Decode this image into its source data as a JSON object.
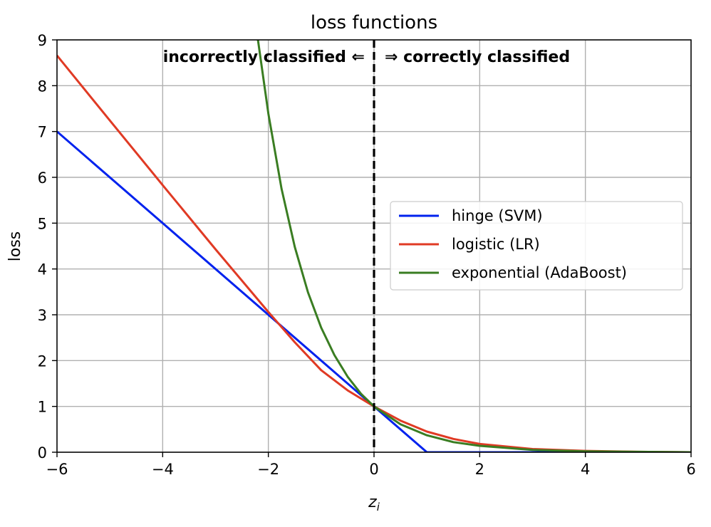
{
  "chart_data": {
    "type": "line",
    "title": "loss functions",
    "xlabel": "z",
    "xlabel_subscript": "i",
    "ylabel": "loss",
    "xlim": [
      -6,
      6
    ],
    "ylim": [
      0,
      9
    ],
    "x_ticks": [
      -6,
      -4,
      -2,
      0,
      2,
      4,
      6
    ],
    "x_tick_labels": [
      "−6",
      "−4",
      "−2",
      "0",
      "2",
      "4",
      "6"
    ],
    "y_ticks": [
      0,
      1,
      2,
      3,
      4,
      5,
      6,
      7,
      8,
      9
    ],
    "y_tick_labels": [
      "0",
      "1",
      "2",
      "3",
      "4",
      "5",
      "6",
      "7",
      "8",
      "9"
    ],
    "grid": true,
    "legend_position": "center-right",
    "vertical_line": {
      "x": 0,
      "style": "dashed",
      "color": "#000000"
    },
    "annotations": {
      "left": "incorrectly classified ⇐",
      "right": "⇒ correctly classified"
    },
    "series": [
      {
        "name": "hinge (SVM)",
        "color": "#0022ee",
        "x": [
          -6,
          -4,
          -2,
          0,
          1,
          2,
          4,
          6
        ],
        "y": [
          7,
          5,
          3,
          1,
          0,
          0,
          0,
          0
        ]
      },
      {
        "name": "logistic (LR)",
        "color": "#e03a24",
        "x": [
          -6,
          -5,
          -4,
          -3,
          -2,
          -1.5,
          -1,
          -0.5,
          0,
          0.5,
          1,
          1.5,
          2,
          3,
          4,
          5,
          6
        ],
        "y": [
          8.66,
          7.24,
          5.83,
          4.43,
          3.06,
          2.4,
          1.79,
          1.35,
          1.0,
          0.69,
          0.45,
          0.29,
          0.18,
          0.07,
          0.03,
          0.01,
          0.0
        ]
      },
      {
        "name": "exponential (AdaBoost)",
        "color": "#3a7d22",
        "x": [
          -2.2,
          -2,
          -1.75,
          -1.5,
          -1.25,
          -1,
          -0.75,
          -0.5,
          -0.25,
          0,
          0.5,
          1,
          1.5,
          2,
          3,
          4,
          5,
          6
        ],
        "y": [
          9.03,
          7.39,
          5.75,
          4.48,
          3.49,
          2.72,
          2.12,
          1.65,
          1.28,
          1.0,
          0.61,
          0.37,
          0.22,
          0.14,
          0.05,
          0.02,
          0.01,
          0.0
        ]
      }
    ]
  }
}
